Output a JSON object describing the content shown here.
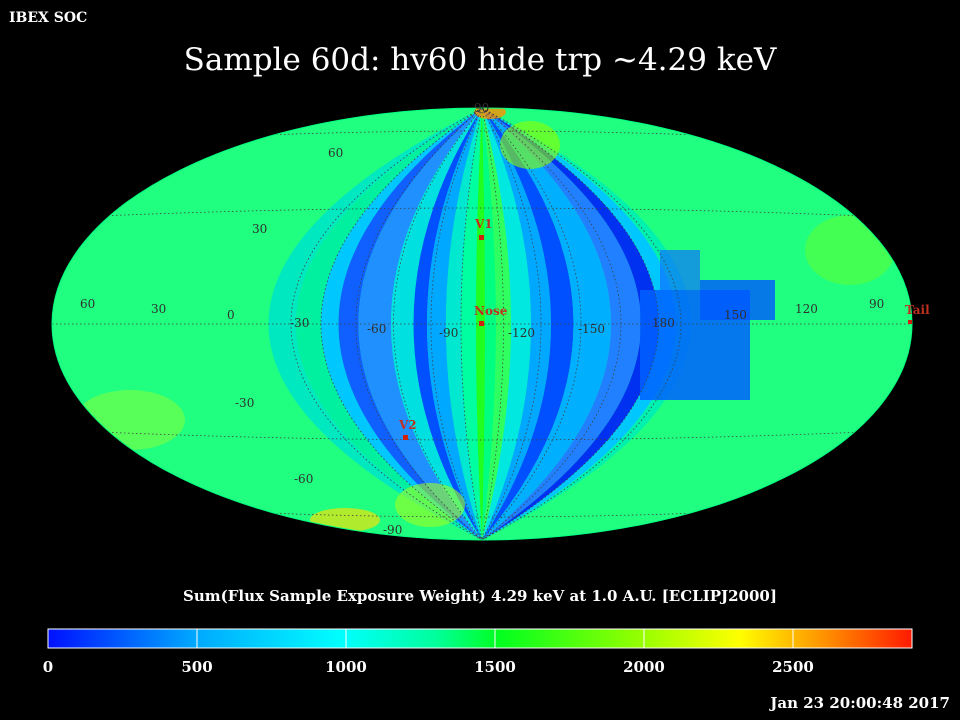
{
  "header": {
    "org": "IBEX SOC",
    "title": "Sample 60d: hv60 hide trp ~4.29 keV",
    "timestamp": "Jan 23 20:00:48 2017"
  },
  "map": {
    "projection": "Mollweide (ecliptic J2000, centered on Nose)",
    "lat_labels": [
      "90",
      "60",
      "30",
      "-30",
      "-60",
      "-90"
    ],
    "lon_labels": [
      "60",
      "30",
      "0",
      "-30",
      "-60",
      "-90",
      "-120",
      "-150",
      "180",
      "150",
      "120",
      "90"
    ],
    "markers": [
      {
        "id": "v1",
        "label": "V1"
      },
      {
        "id": "nose",
        "label": "Nose"
      },
      {
        "id": "v2",
        "label": "V2"
      },
      {
        "id": "tail",
        "label": "Tail"
      }
    ],
    "marker_color": "#d02010",
    "grid_color": "#404040"
  },
  "colorbar": {
    "title": "Sum(Flux Sample Exposure Weight)  4.29 keV at 1.0 A.U. [ECLIPJ2000]",
    "ticks": [
      "0",
      "500",
      "1000",
      "1500",
      "2000",
      "2500"
    ],
    "range": [
      0,
      2900
    ],
    "colors": [
      "#0020ff",
      "#00a0ff",
      "#00ffff",
      "#00ff80",
      "#00ff00",
      "#80ff00",
      "#ffff00",
      "#ff8000",
      "#ff2000"
    ]
  }
}
